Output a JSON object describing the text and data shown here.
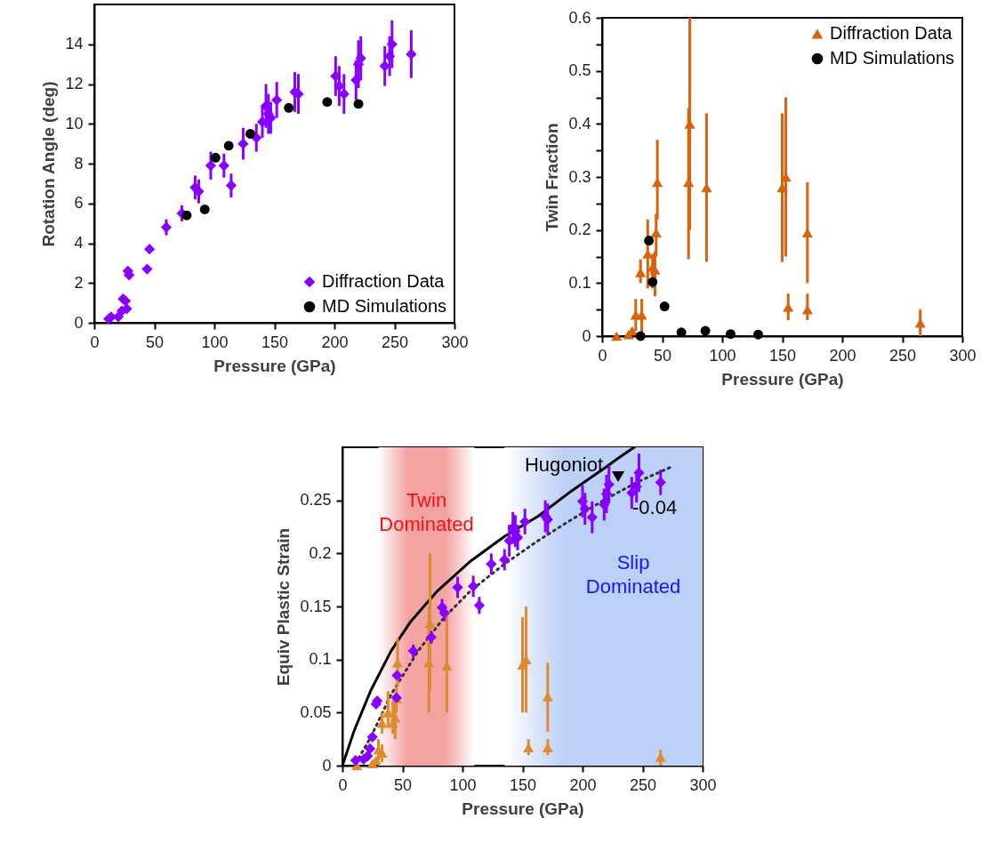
{
  "chart_data": [
    {
      "type": "scatter",
      "xlabel": "Pressure (GPa)",
      "ylabel": "Rotation Angle (deg)",
      "xlim": [
        0,
        300
      ],
      "ylim": [
        0,
        16
      ],
      "xticks": [
        0,
        50,
        100,
        150,
        200,
        250,
        300
      ],
      "yticks": [
        0,
        2,
        4,
        6,
        8,
        10,
        12,
        14
      ],
      "grid": false,
      "legend": "bottom right",
      "series": [
        {
          "name": "Diffraction Data",
          "color": "#8800ff",
          "marker": "diamond",
          "x": [
            12,
            14,
            20,
            23,
            24,
            26,
            27,
            28,
            29,
            44,
            46,
            60,
            73,
            84,
            87,
            97,
            108,
            114,
            124,
            135,
            140,
            143,
            145,
            147,
            152,
            167,
            170,
            201,
            204,
            208,
            218,
            220,
            222,
            242,
            246,
            248,
            264
          ],
          "values": [
            0.2,
            0.3,
            0.3,
            0.6,
            1.2,
            1.1,
            0.7,
            2.6,
            2.4,
            2.7,
            3.7,
            4.8,
            5.5,
            6.8,
            6.6,
            7.9,
            7.9,
            6.9,
            9.0,
            9.3,
            10.1,
            10.9,
            10.5,
            10.3,
            11.2,
            11.6,
            11.5,
            12.4,
            11.9,
            11.5,
            12.2,
            13.0,
            13.3,
            12.9,
            13.4,
            14.0,
            13.5
          ],
          "errors": [
            null,
            null,
            null,
            null,
            null,
            null,
            null,
            null,
            null,
            null,
            null,
            0.4,
            0.4,
            0.6,
            0.6,
            0.7,
            0.6,
            0.6,
            0.8,
            0.7,
            0.8,
            1.1,
            1.0,
            0.8,
            0.9,
            1.0,
            1.0,
            1.0,
            1.0,
            1.0,
            1.0,
            1.2,
            1.1,
            1.0,
            1.0,
            1.2,
            1.2
          ]
        },
        {
          "name": "MD Simulations",
          "color": "#000000",
          "marker": "circle",
          "x": [
            77,
            92,
            101,
            112,
            130,
            162,
            194,
            220
          ],
          "values": [
            5.4,
            5.7,
            8.3,
            8.9,
            9.5,
            10.8,
            11.1,
            11.0
          ]
        }
      ]
    },
    {
      "type": "scatter",
      "xlabel": "Pressure (GPa)",
      "ylabel": "Twin Fraction",
      "xlim": [
        0,
        300
      ],
      "ylim": [
        0,
        0.6
      ],
      "xticks": [
        0,
        50,
        100,
        150,
        200,
        250,
        300
      ],
      "yticks": [
        0,
        {
          "value": 0.05,
          "label": null
        },
        0.1,
        {
          "value": 0.15,
          "label": null
        },
        0.2,
        {
          "value": 0.25,
          "label": null
        },
        0.3,
        {
          "value": 0.35,
          "label": null
        },
        0.4,
        {
          "value": 0.45,
          "label": null
        },
        0.5,
        {
          "value": 0.55,
          "label": null
        },
        0.6
      ],
      "grid": false,
      "legend": "top right",
      "series": [
        {
          "name": "Diffraction Data",
          "color": "#d9620f",
          "marker": "triangle",
          "x": [
            12,
            22,
            25,
            28,
            33,
            32,
            38,
            42,
            44,
            45,
            46,
            72,
            73,
            87,
            150,
            153,
            155,
            171,
            171,
            265
          ],
          "values": [
            0,
            0.003,
            0.01,
            0.04,
            0.04,
            0.12,
            0.155,
            0.13,
            0.125,
            0.195,
            0.29,
            0.29,
            0.4,
            0.28,
            0.28,
            0.3,
            0.055,
            0.195,
            0.05,
            0.025
          ],
          "errors": [
            null,
            null,
            null,
            [
              0.01,
              0.07
            ],
            [
              0,
              0.07
            ],
            [
              0.1,
              0.145
            ],
            [
              0.09,
              0.22
            ],
            [
              0.09,
              0.155
            ],
            [
              0.075,
              0.16
            ],
            [
              0.15,
              0.23
            ],
            [
              0.22,
              0.37
            ],
            [
              0.145,
              0.43
            ],
            [
              0.2,
              0.6
            ],
            [
              0.14,
              0.42
            ],
            [
              0.14,
              0.42
            ],
            [
              0.15,
              0.45
            ],
            [
              0.03,
              0.08
            ],
            [
              0.1,
              0.29
            ],
            [
              0.03,
              0.08
            ],
            [
              0,
              0.05
            ]
          ]
        },
        {
          "name": "MD Simulations",
          "color": "#000000",
          "marker": "circle",
          "x": [
            32,
            39,
            42,
            52,
            66,
            86,
            107,
            130
          ],
          "values": [
            0,
            0.18,
            0.102,
            0.056,
            0.007,
            0.01,
            0.004,
            0.003
          ]
        }
      ]
    },
    {
      "type": "scatter",
      "xlabel": "Pressure (GPa)",
      "ylabel": "Equiv Plastic Strain",
      "xlim": [
        0,
        300
      ],
      "ylim": [
        0,
        0.3
      ],
      "xticks": [
        0,
        50,
        100,
        150,
        200,
        250,
        300
      ],
      "yticks": [
        0,
        0.05,
        0.1,
        0.15,
        0.2,
        0.25
      ],
      "grid": false,
      "bands": [
        {
          "axis": "x",
          "from": 30,
          "to": 110,
          "label": "Twin Dominated",
          "color": "#f4a3a3"
        },
        {
          "axis": "x",
          "from": 135,
          "to": 300,
          "label": "Slip Dominated",
          "color": "#bdd0f8"
        }
      ],
      "annotations": [
        "-0.04"
      ],
      "series": [
        {
          "type": "line",
          "name": "Hugoniot",
          "color": "#000000",
          "line_style": "solid",
          "x": [
            0,
            9.8,
            23.7,
            40.5,
            57,
            79.5,
            107,
            135,
            163,
            191,
            219,
            230,
            243
          ],
          "values": [
            0,
            0.033,
            0.071,
            0.108,
            0.136,
            0.165,
            0.193,
            0.216,
            0.235,
            0.259,
            0.281,
            0.29,
            0.3
          ]
        },
        {
          "type": "line",
          "color": "#333333",
          "line_style": "dotted",
          "x": [
            11,
            23.7,
            40.5,
            63,
            85,
            107,
            135,
            163,
            191,
            219,
            247,
            273
          ],
          "values": [
            0.002,
            0.027,
            0.067,
            0.108,
            0.14,
            0.165,
            0.19,
            0.212,
            0.232,
            0.251,
            0.268,
            0.281
          ]
        },
        {
          "color": "#e08a30",
          "marker": "triangle",
          "x": [
            12,
            25,
            28,
            30,
            33,
            33,
            38,
            42,
            44,
            45,
            46,
            72,
            73,
            87,
            150,
            153,
            155,
            171,
            171,
            265
          ],
          "values": [
            0,
            0.002,
            0.005,
            0.015,
            0.012,
            0.04,
            0.05,
            0.04,
            0.045,
            0.063,
            0.097,
            0.097,
            0.134,
            0.094,
            0.095,
            0.1,
            0.017,
            0.065,
            0.017,
            0.008
          ],
          "errors": [
            null,
            null,
            null,
            [
              0.005,
              0.025
            ],
            [
              0.003,
              0.02
            ],
            [
              0.03,
              0.05
            ],
            [
              0.036,
              0.07
            ],
            [
              0.03,
              0.06
            ],
            [
              0.025,
              0.06
            ],
            [
              0.05,
              0.075
            ],
            [
              0.075,
              0.12
            ],
            [
              0.05,
              0.15
            ],
            [
              0.07,
              0.2
            ],
            [
              0.05,
              0.145
            ],
            [
              0.05,
              0.14
            ],
            [
              0.05,
              0.15
            ],
            [
              0.01,
              0.025
            ],
            [
              0.032,
              0.097
            ],
            [
              0.01,
              0.025
            ],
            [
              0,
              0.015
            ]
          ]
        },
        {
          "color": "#8800ff",
          "marker": "diamond",
          "x": [
            11,
            17.6,
            21,
            23,
            25,
            28,
            29,
            45,
            45.5,
            59,
            74,
            83,
            85,
            96,
            109,
            114,
            124,
            135,
            139,
            142,
            144,
            146,
            152,
            169,
            171,
            200,
            202,
            208,
            218,
            220,
            222,
            241,
            245,
            247,
            265
          ],
          "values": [
            0.005,
            0.006,
            0.009,
            0.016,
            0.027,
            0.058,
            0.061,
            0.064,
            0.085,
            0.108,
            0.121,
            0.149,
            0.144,
            0.168,
            0.169,
            0.151,
            0.19,
            0.194,
            0.212,
            0.224,
            0.221,
            0.215,
            0.23,
            0.235,
            0.232,
            0.249,
            0.242,
            0.234,
            0.246,
            0.256,
            0.265,
            0.257,
            0.263,
            0.276,
            0.267
          ],
          "errors": [
            null,
            null,
            null,
            null,
            null,
            null,
            null,
            null,
            null,
            0.006,
            0.006,
            0.008,
            0.008,
            0.01,
            0.01,
            0.008,
            0.01,
            0.01,
            0.015,
            0.015,
            0.015,
            0.012,
            0.012,
            0.015,
            0.015,
            0.015,
            0.015,
            0.015,
            0.015,
            0.018,
            0.018,
            0.015,
            0.015,
            0.018,
            0.012
          ]
        }
      ]
    }
  ]
}
